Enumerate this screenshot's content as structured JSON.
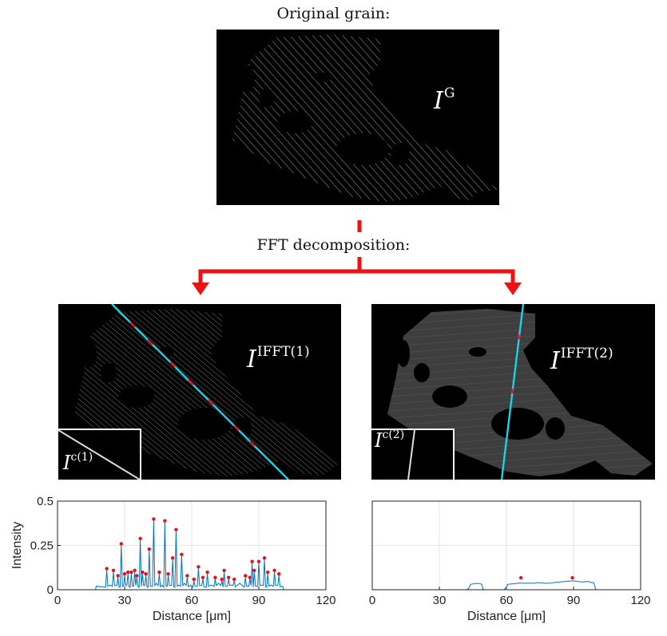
{
  "titles": {
    "original": "Original grain:",
    "fft": "FFT decomposition:"
  },
  "labels": {
    "grain": {
      "base": "I",
      "sup": "G"
    },
    "ifft1": {
      "base": "I",
      "sup": "IFFT(1)"
    },
    "ifft2": {
      "base": "I",
      "sup": "IFFT(2)"
    },
    "c1": {
      "base": "I",
      "sup": "c(1)"
    },
    "c2": {
      "base": "I",
      "sup": "c(2)"
    }
  },
  "colors": {
    "arrow": "#ee1111",
    "profile_line": "#0072bd",
    "peak": "#e8101e",
    "scan_line": "#19d3e6",
    "axis": "#222222",
    "grid": "#e6e6e6"
  },
  "chart_data": [
    {
      "type": "line",
      "xlabel": "Distance [μm]",
      "ylabel": "Intensity",
      "xlim": [
        0,
        120
      ],
      "ylim": [
        0,
        0.5
      ],
      "xticks": [
        0,
        30,
        60,
        90,
        120
      ],
      "yticks": [
        0,
        0.25,
        0.5
      ],
      "ytick_labels": [
        "0",
        "0.25",
        "0.5"
      ],
      "grid": true,
      "peaks": [
        {
          "x": 22,
          "y": 0.11
        },
        {
          "x": 25,
          "y": 0.1
        },
        {
          "x": 27,
          "y": 0.07
        },
        {
          "x": 28.5,
          "y": 0.25
        },
        {
          "x": 30,
          "y": 0.08
        },
        {
          "x": 31.5,
          "y": 0.09
        },
        {
          "x": 33,
          "y": 0.09
        },
        {
          "x": 34.5,
          "y": 0.1
        },
        {
          "x": 35.5,
          "y": 0.07
        },
        {
          "x": 37,
          "y": 0.28
        },
        {
          "x": 38,
          "y": 0.09
        },
        {
          "x": 39.5,
          "y": 0.08
        },
        {
          "x": 41,
          "y": 0.22
        },
        {
          "x": 43,
          "y": 0.39
        },
        {
          "x": 45.5,
          "y": 0.09
        },
        {
          "x": 48,
          "y": 0.38
        },
        {
          "x": 49.5,
          "y": 0.08
        },
        {
          "x": 51.5,
          "y": 0.17
        },
        {
          "x": 53,
          "y": 0.33
        },
        {
          "x": 55.5,
          "y": 0.19
        },
        {
          "x": 58,
          "y": 0.07
        },
        {
          "x": 61,
          "y": 0.05
        },
        {
          "x": 63,
          "y": 0.12
        },
        {
          "x": 65,
          "y": 0.06
        },
        {
          "x": 67,
          "y": 0.09
        },
        {
          "x": 70.5,
          "y": 0.06
        },
        {
          "x": 73.5,
          "y": 0.05
        },
        {
          "x": 74.5,
          "y": 0.1
        },
        {
          "x": 76.5,
          "y": 0.06
        },
        {
          "x": 79,
          "y": 0.05
        },
        {
          "x": 84,
          "y": 0.07
        },
        {
          "x": 86,
          "y": 0.06
        },
        {
          "x": 87,
          "y": 0.15
        },
        {
          "x": 88,
          "y": 0.1
        },
        {
          "x": 90,
          "y": 0.15
        },
        {
          "x": 92.5,
          "y": 0.17
        },
        {
          "x": 94,
          "y": 0.09
        },
        {
          "x": 97,
          "y": 0.1
        },
        {
          "x": 99,
          "y": 0.08
        }
      ],
      "baseline": {
        "start": 17,
        "end": 101,
        "level": 0.02
      },
      "series": [
        {
          "values_from": "peaks"
        }
      ]
    },
    {
      "type": "line",
      "xlabel": "Distance [μm]",
      "ylabel": "",
      "xlim": [
        0,
        120
      ],
      "ylim": [
        0,
        0.5
      ],
      "xticks": [
        0,
        30,
        60,
        90,
        120
      ],
      "grid": true,
      "profile": [
        [
          0,
          0
        ],
        [
          42,
          0
        ],
        [
          43,
          0.005
        ],
        [
          44,
          0.03
        ],
        [
          46,
          0.035
        ],
        [
          48,
          0.035
        ],
        [
          49,
          0.03
        ],
        [
          49.5,
          0.005
        ],
        [
          50,
          0
        ],
        [
          59,
          0
        ],
        [
          59.5,
          0.01
        ],
        [
          60,
          0.01
        ],
        [
          60.5,
          0.03
        ],
        [
          62,
          0.032
        ],
        [
          64,
          0.035
        ],
        [
          66,
          0.038
        ],
        [
          68,
          0.036
        ],
        [
          70,
          0.038
        ],
        [
          72,
          0.036
        ],
        [
          74,
          0.04
        ],
        [
          76,
          0.038
        ],
        [
          78,
          0.036
        ],
        [
          80,
          0.038
        ],
        [
          82,
          0.042
        ],
        [
          84,
          0.044
        ],
        [
          86,
          0.046
        ],
        [
          88,
          0.048
        ],
        [
          90,
          0.05
        ],
        [
          92,
          0.046
        ],
        [
          94,
          0.044
        ],
        [
          96,
          0.046
        ],
        [
          97,
          0.045
        ],
        [
          98,
          0.04
        ],
        [
          99,
          0.04
        ],
        [
          99.5,
          0.02
        ],
        [
          100,
          0
        ],
        [
          120,
          0
        ]
      ],
      "peaks": [
        {
          "x": 66.5,
          "y": 0.058
        },
        {
          "x": 89.5,
          "y": 0.058
        }
      ]
    }
  ]
}
